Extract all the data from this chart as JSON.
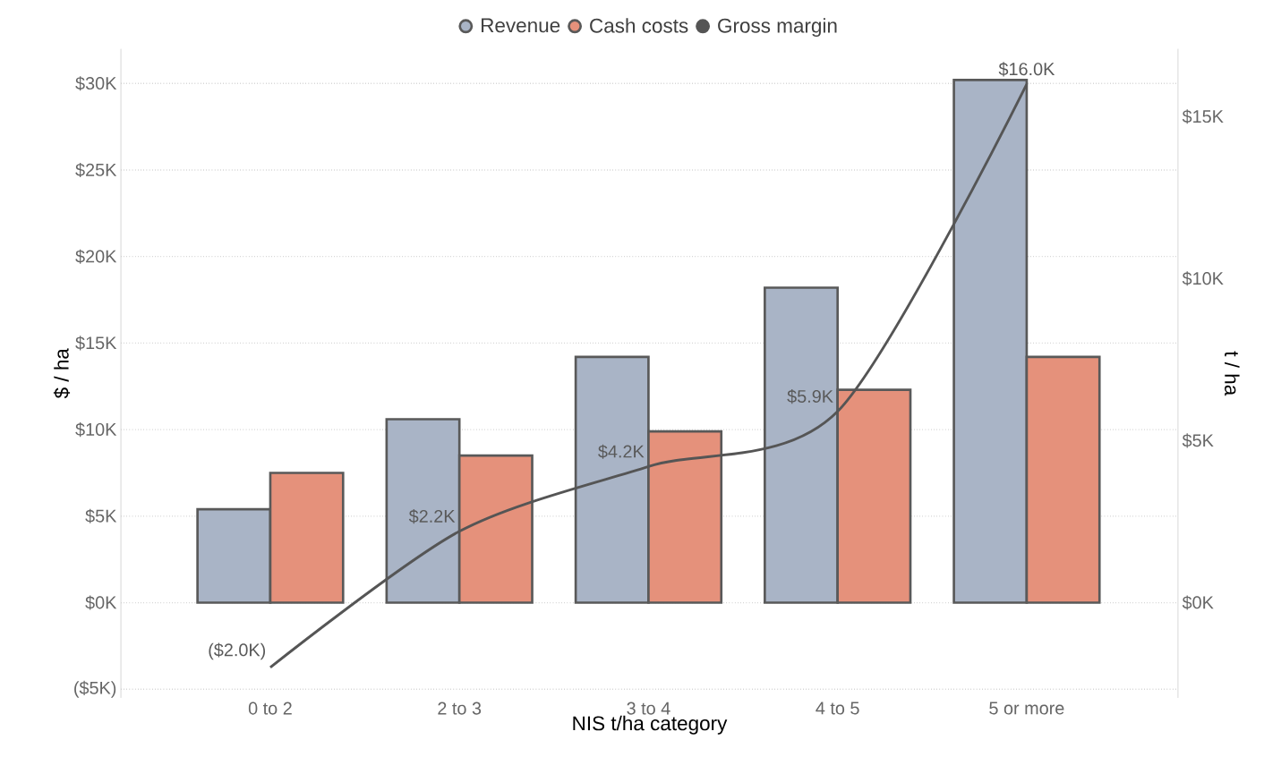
{
  "chart_data": {
    "type": "bar",
    "xlabel": "NIS t/ha category",
    "ylabel": "$ / ha",
    "y2label": "t / ha",
    "categories": [
      "0 to 2",
      "2 to 3",
      "3 to 4",
      "4 to 5",
      "5 or more"
    ],
    "series": [
      {
        "name": "Revenue",
        "color": "#a9b4c6",
        "values": [
          5.4,
          10.6,
          14.2,
          18.2,
          30.2
        ]
      },
      {
        "name": "Cash costs",
        "color": "#e5917b",
        "values": [
          7.5,
          8.5,
          9.9,
          12.3,
          14.2
        ]
      },
      {
        "name": "Gross margin",
        "type": "line",
        "axis": "y2",
        "color": "#555555",
        "values": [
          -2.0,
          2.2,
          4.2,
          5.9,
          16.0
        ],
        "value_labels": [
          "($2.0K)",
          "$2.2K",
          "$4.2K",
          "$5.9K",
          "$16.0K"
        ]
      }
    ],
    "ylim": [
      -5.5,
      32
    ],
    "yticks": [
      {
        "value": -5,
        "label": "($5K)"
      },
      {
        "value": 0,
        "label": "$0K"
      },
      {
        "value": 5,
        "label": "$5K"
      },
      {
        "value": 10,
        "label": "$10K"
      },
      {
        "value": 15,
        "label": "$15K"
      },
      {
        "value": 20,
        "label": "$20K"
      },
      {
        "value": 25,
        "label": "$25K"
      },
      {
        "value": 30,
        "label": "$30K"
      }
    ],
    "y2lim": [
      -2.94,
      17.09
    ],
    "y2ticks": [
      {
        "value": 0,
        "label": "$0K"
      },
      {
        "value": 5,
        "label": "$5K"
      },
      {
        "value": 10,
        "label": "$10K"
      },
      {
        "value": 15,
        "label": "$15K"
      }
    ],
    "grid": "y",
    "legend": "top",
    "marker": "none",
    "line_style": "solid"
  }
}
